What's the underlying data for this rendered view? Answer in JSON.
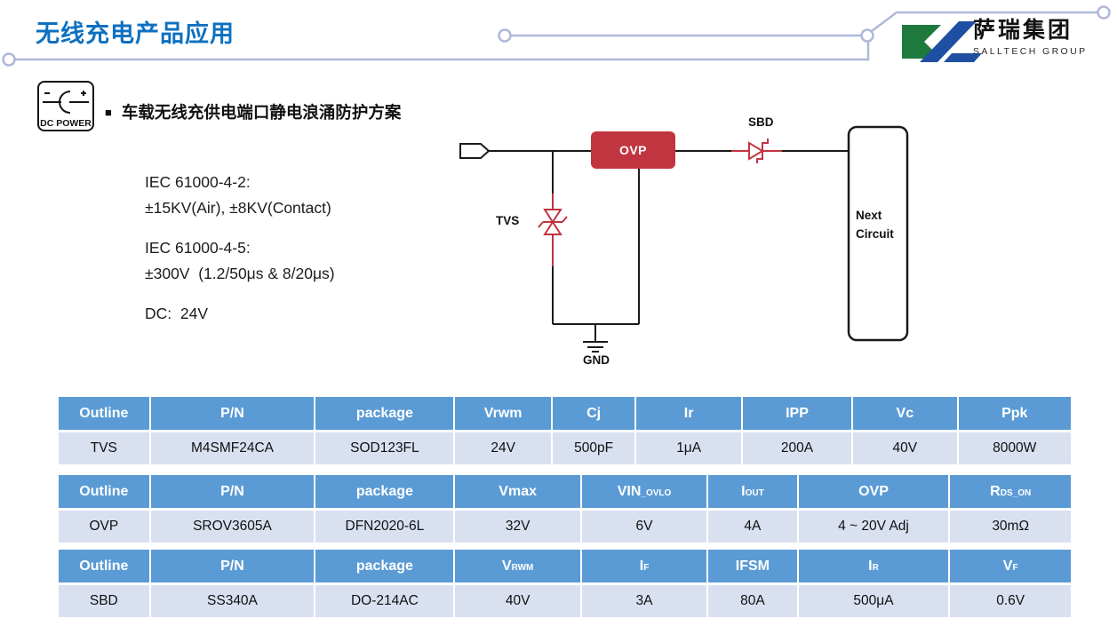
{
  "page": {
    "title": "无线充电产品应用"
  },
  "logo": {
    "cn": "萨瑞集团",
    "en": "SALLTECH GROUP"
  },
  "dc_power": {
    "label": "DC POWER"
  },
  "section": {
    "bullet": "■",
    "title": "车载无线充供电端口静电浪涌防护方案"
  },
  "specs": {
    "groups": [
      [
        "IEC 61000-4-2:",
        "±15KV(Air), ±8KV(Contact)"
      ],
      [
        "IEC 61000-4-5:",
        "±300V  (1.2/50μs & 8/20μs)"
      ],
      [
        "DC:  24V"
      ]
    ]
  },
  "circuit": {
    "labels": {
      "tvs": "TVS",
      "ovp": "OVP",
      "sbd": "SBD",
      "gnd": "GND",
      "next1": "Next",
      "next2": "Circuit"
    }
  },
  "tables": [
    {
      "name": "tvs-table",
      "widths": [
        9.1,
        16.3,
        13.8,
        9.6,
        8.3,
        10.5,
        10.9,
        10.4,
        11.1
      ],
      "headers": [
        {
          "t": "Outline"
        },
        {
          "t": "P/N"
        },
        {
          "t": "package"
        },
        {
          "t": "Vrwm"
        },
        {
          "t": "Cj"
        },
        {
          "t": "Ir"
        },
        {
          "t": "IPP"
        },
        {
          "t": "Vc"
        },
        {
          "t": "Ppk"
        }
      ],
      "rows": [
        [
          "TVS",
          "M4SMF24CA",
          "SOD123FL",
          "24V",
          "500pF",
          "1μA",
          "200A",
          "40V",
          "8000W"
        ]
      ]
    },
    {
      "name": "ovp-table",
      "widths": [
        9.1,
        16.3,
        13.8,
        12.5,
        12.5,
        8.9,
        15.0,
        11.9
      ],
      "headers": [
        {
          "t": "Outline"
        },
        {
          "t": "P/N"
        },
        {
          "t": "package"
        },
        {
          "t": "Vmax"
        },
        {
          "t": "VIN",
          "s": "_OVLO"
        },
        {
          "t": "I",
          "s": "OUT"
        },
        {
          "t": "OVP"
        },
        {
          "t": "R",
          "s": "DS_ON"
        }
      ],
      "rows": [
        [
          "OVP",
          "SROV3605A",
          "DFN2020-6L",
          "32V",
          "6V",
          "4A",
          "4 ~ 20V Adj",
          "30mΩ"
        ]
      ]
    },
    {
      "name": "sbd-table",
      "widths": [
        9.1,
        16.3,
        13.8,
        12.5,
        12.5,
        8.9,
        15.0,
        11.9
      ],
      "headers": [
        {
          "t": "Outline"
        },
        {
          "t": "P/N"
        },
        {
          "t": "package"
        },
        {
          "t": "V",
          "s": "RWM"
        },
        {
          "t": "I",
          "s": "F"
        },
        {
          "t": "IFSM"
        },
        {
          "t": "I",
          "s": "R"
        },
        {
          "t": "V",
          "s": "F"
        }
      ],
      "rows": [
        [
          "SBD",
          "SS340A",
          "DO-214AC",
          "40V",
          "3A",
          "80A",
          "500μA",
          "0.6V"
        ]
      ]
    }
  ],
  "colors": {
    "title_blue": "#0E70C0",
    "trace": "#AEB9D9",
    "component_red": "#C13540",
    "header_bg": "#5B9BD5",
    "row_bg": "#D9E1F1",
    "logo_green": "#1E7A3C",
    "logo_blue": "#1F4FA3"
  }
}
